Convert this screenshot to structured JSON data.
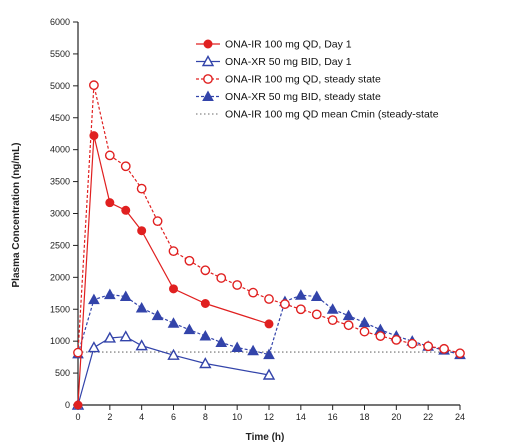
{
  "chart_data": {
    "type": "line",
    "title": "",
    "xlabel": "Time (h)",
    "ylabel": "Plasma Concentration (ng/mL)",
    "xlim": [
      0,
      24
    ],
    "ylim": [
      0,
      6000
    ],
    "xticks": [
      0,
      2,
      4,
      6,
      8,
      10,
      12,
      14,
      16,
      18,
      20,
      22,
      24
    ],
    "yticks": [
      0,
      500,
      1000,
      1500,
      2000,
      2500,
      3000,
      3500,
      4000,
      4500,
      5000,
      5500,
      6000
    ],
    "grid": false,
    "legend_position": "top-right",
    "series": [
      {
        "name": "ONA-IR 100 mg QD, Day 1",
        "color": "#e02020",
        "marker": "circle-filled",
        "line": "solid",
        "x": [
          0,
          1,
          2,
          3,
          4,
          6,
          8,
          12
        ],
        "y": [
          0,
          4220,
          3170,
          3050,
          2730,
          1820,
          1590,
          1270
        ]
      },
      {
        "name": "ONA-XR 50 mg BID, Day 1",
        "color": "#3344aa",
        "marker": "triangle-open",
        "line": "solid",
        "x": [
          0,
          1,
          2,
          3,
          4,
          6,
          8,
          12
        ],
        "y": [
          0,
          900,
          1050,
          1070,
          930,
          780,
          650,
          470
        ]
      },
      {
        "name": "ONA-IR 100 mg QD, steady state",
        "color": "#e02020",
        "marker": "circle-open",
        "line": "dashed",
        "x": [
          0,
          1,
          2,
          3,
          4,
          5,
          6,
          7,
          8,
          9,
          10,
          11,
          12,
          13,
          14,
          15,
          16,
          17,
          18,
          19,
          20,
          21,
          22,
          23,
          24
        ],
        "y": [
          820,
          5010,
          3910,
          3740,
          3390,
          2880,
          2410,
          2260,
          2110,
          1990,
          1880,
          1760,
          1660,
          1580,
          1500,
          1420,
          1330,
          1250,
          1150,
          1080,
          1020,
          960,
          920,
          880,
          810
        ]
      },
      {
        "name": "ONA-XR 50 mg BID, steady state",
        "color": "#3344aa",
        "marker": "triangle-filled",
        "line": "dashed",
        "x": [
          0,
          1,
          2,
          3,
          4,
          5,
          6,
          7,
          8,
          9,
          10,
          11,
          12,
          13,
          14,
          15,
          16,
          17,
          18,
          19,
          20,
          21,
          22,
          23,
          24
        ],
        "y": [
          800,
          1650,
          1730,
          1700,
          1520,
          1400,
          1280,
          1180,
          1080,
          980,
          900,
          850,
          790,
          1620,
          1720,
          1700,
          1500,
          1400,
          1290,
          1180,
          1080,
          1000,
          920,
          860,
          790
        ]
      },
      {
        "name": "ONA-IR 100 mg QD mean Cmin (steady-state",
        "color": "#888888",
        "marker": "none",
        "line": "dotted",
        "x": [
          0,
          24
        ],
        "y": [
          830,
          830
        ]
      }
    ]
  }
}
